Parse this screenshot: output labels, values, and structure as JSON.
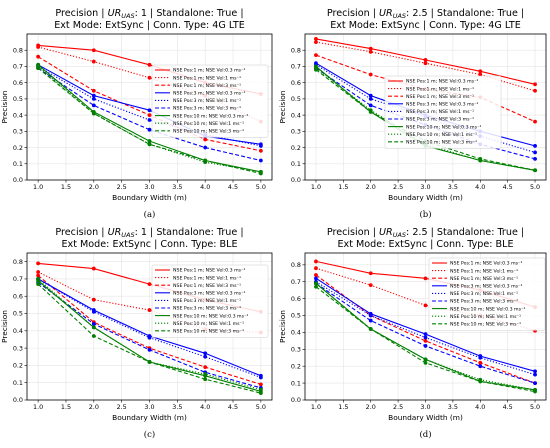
{
  "figure": {
    "line_styles": {
      "0.3": "solid",
      "1": "dotted",
      "3": "dashed"
    },
    "colors": {
      "1": "#ff0000",
      "3": "#0000ff",
      "10": "#008000"
    }
  },
  "chart_data": [
    {
      "type": "line",
      "title_line1_a": "Precision | ",
      "title_ur_main": "UR",
      "title_ur_sub": "UAS",
      "title_line1_b": ": 1 | Standalone: True |",
      "title_line2": "Ext Mode: ExtSync | Conn. Type: 4G LTE",
      "xlabel": "Boundary  Width (m)",
      "ylabel": "Precision",
      "panel_label": "(a)",
      "xlim": [
        0.8,
        5.2
      ],
      "ylim": [
        0.0,
        0.9
      ],
      "xticks": [
        "1.0",
        "1.5",
        "2.0",
        "2.5",
        "3.0",
        "3.5",
        "4.0",
        "4.5",
        "5.0"
      ],
      "yticks": [
        "0.0",
        "0.1",
        "0.2",
        "0.3",
        "0.4",
        "0.5",
        "0.6",
        "0.7",
        "0.8"
      ],
      "grid": true,
      "legend_position": "center-right",
      "x": [
        1,
        2,
        3,
        4,
        5
      ],
      "series": [
        {
          "name": "NSE Pos:1 m; NSE Vel:0.3 ms⁻¹",
          "pos": "1",
          "vel": "0.3",
          "values": [
            0.83,
            0.8,
            0.71,
            0.6,
            0.53
          ]
        },
        {
          "name": "NSE Pos:1 m; NSE Vel:1 ms⁻¹",
          "pos": "1",
          "vel": "1",
          "values": [
            0.82,
            0.73,
            0.63,
            0.52,
            0.36
          ]
        },
        {
          "name": "NSE Pos:1 m; NSE Vel:3 ms⁻¹",
          "pos": "1",
          "vel": "3",
          "values": [
            0.76,
            0.55,
            0.4,
            0.25,
            0.18
          ]
        },
        {
          "name": "NSE Pos:3 m; NSE Vel:0.3 ms⁻¹",
          "pos": "3",
          "vel": "0.3",
          "values": [
            0.71,
            0.52,
            0.43,
            0.27,
            0.22
          ]
        },
        {
          "name": "NSE Pos:3 m; NSE Vel:1 ms⁻¹",
          "pos": "3",
          "vel": "1",
          "values": [
            0.7,
            0.5,
            0.37,
            0.28,
            0.21
          ]
        },
        {
          "name": "NSE Pos:3 m; NSE Vel:3 ms⁻¹",
          "pos": "3",
          "vel": "3",
          "values": [
            0.69,
            0.46,
            0.31,
            0.2,
            0.12
          ]
        },
        {
          "name": "NSE Pos:10 m; NSE Vel:0.3 ms⁻¹",
          "pos": "10",
          "vel": "0.3",
          "values": [
            0.71,
            0.42,
            0.24,
            0.12,
            0.05
          ]
        },
        {
          "name": "NSE Pos:10 m; NSE Vel:1 ms⁻¹",
          "pos": "10",
          "vel": "1",
          "values": [
            0.7,
            0.41,
            0.22,
            0.11,
            0.05
          ]
        },
        {
          "name": "NSE Pos:10 m; NSE Vel:3 ms⁻¹",
          "pos": "10",
          "vel": "3",
          "values": [
            0.69,
            0.41,
            0.22,
            0.12,
            0.04
          ]
        }
      ]
    },
    {
      "type": "line",
      "title_line1_a": "Precision | ",
      "title_ur_main": "UR",
      "title_ur_sub": "UAS",
      "title_line1_b": ": 2.5 | Standalone: True |",
      "title_line2": "Ext Mode: ExtSync | Conn. Type: 4G LTE",
      "xlabel": "Boundary  Width (m)",
      "ylabel": "Precision",
      "panel_label": "(b)",
      "xlim": [
        0.8,
        5.2
      ],
      "ylim": [
        0.0,
        0.9
      ],
      "xticks": [
        "1.0",
        "1.5",
        "2.0",
        "2.5",
        "3.0",
        "3.5",
        "4.0",
        "4.5",
        "5.0"
      ],
      "yticks": [
        "0.0",
        "0.1",
        "0.2",
        "0.3",
        "0.4",
        "0.5",
        "0.6",
        "0.7",
        "0.8"
      ],
      "grid": true,
      "legend_position": "center",
      "x": [
        1,
        2,
        3,
        4,
        5
      ],
      "series": [
        {
          "name": "NSE Pos:1 m; NSE Vel:0.3 ms⁻¹",
          "pos": "1",
          "vel": "0.3",
          "values": [
            0.87,
            0.81,
            0.74,
            0.67,
            0.59
          ]
        },
        {
          "name": "NSE Pos:1 m; NSE Vel:1 ms⁻¹",
          "pos": "1",
          "vel": "1",
          "values": [
            0.85,
            0.79,
            0.72,
            0.65,
            0.55
          ]
        },
        {
          "name": "NSE Pos:1 m; NSE Vel:3 ms⁻¹",
          "pos": "1",
          "vel": "3",
          "values": [
            0.77,
            0.65,
            0.56,
            0.51,
            0.36
          ]
        },
        {
          "name": "NSE Pos:3 m; NSE Vel:0.3 ms⁻¹",
          "pos": "3",
          "vel": "0.3",
          "values": [
            0.72,
            0.52,
            0.4,
            0.3,
            0.21
          ]
        },
        {
          "name": "NSE Pos:3 m; NSE Vel:1 ms⁻¹",
          "pos": "3",
          "vel": "1",
          "values": [
            0.71,
            0.5,
            0.39,
            0.27,
            0.17
          ]
        },
        {
          "name": "NSE Pos:3 m; NSE Vel:3 ms⁻¹",
          "pos": "3",
          "vel": "3",
          "values": [
            0.69,
            0.46,
            0.34,
            0.22,
            0.13
          ]
        },
        {
          "name": "NSE Pos:10 m; NSE Vel:0.3 ms⁻¹",
          "pos": "10",
          "vel": "0.3",
          "values": [
            0.7,
            0.42,
            0.21,
            0.12,
            0.06
          ]
        },
        {
          "name": "NSE Pos:10 m; NSE Vel:1 ms⁻¹",
          "pos": "10",
          "vel": "1",
          "values": [
            0.69,
            0.43,
            0.22,
            0.12,
            0.06
          ]
        },
        {
          "name": "NSE Pos:10 m; NSE Vel:3 ms⁻¹",
          "pos": "10",
          "vel": "3",
          "values": [
            0.68,
            0.42,
            0.24,
            0.13,
            0.06
          ]
        }
      ]
    },
    {
      "type": "line",
      "title_line1_a": "Precision | ",
      "title_ur_main": "UR",
      "title_ur_sub": "UAS",
      "title_line1_b": ": 1 | Standalone: True |",
      "title_line2": "Ext Mode: ExtSync | Conn. Type: BLE",
      "xlabel": "Boundary  Width (m)",
      "ylabel": "Precision",
      "panel_label": "(c)",
      "xlim": [
        0.8,
        5.2
      ],
      "ylim": [
        0.0,
        0.85
      ],
      "xticks": [
        "1.0",
        "1.5",
        "2.0",
        "2.5",
        "3.0",
        "3.5",
        "4.0",
        "4.5",
        "5.0"
      ],
      "yticks": [
        "0.0",
        "0.1",
        "0.2",
        "0.3",
        "0.4",
        "0.5",
        "0.6",
        "0.7",
        "0.8"
      ],
      "grid": true,
      "legend_position": "upper-right",
      "x": [
        1,
        2,
        3,
        4,
        5
      ],
      "series": [
        {
          "name": "NSE Pos:1 m; NSE Vel:0.3 ms⁻¹",
          "pos": "1",
          "vel": "0.3",
          "values": [
            0.79,
            0.76,
            0.67,
            0.58,
            0.51
          ]
        },
        {
          "name": "NSE Pos:1 m; NSE Vel:1 ms⁻¹",
          "pos": "1",
          "vel": "1",
          "values": [
            0.74,
            0.58,
            0.52,
            0.41,
            0.39
          ]
        },
        {
          "name": "NSE Pos:1 m; NSE Vel:3 ms⁻¹",
          "pos": "1",
          "vel": "3",
          "values": [
            0.72,
            0.45,
            0.3,
            0.19,
            0.09
          ]
        },
        {
          "name": "NSE Pos:3 m; NSE Vel:0.3 ms⁻¹",
          "pos": "3",
          "vel": "0.3",
          "values": [
            0.7,
            0.52,
            0.37,
            0.27,
            0.14
          ]
        },
        {
          "name": "NSE Pos:3 m; NSE Vel:1 ms⁻¹",
          "pos": "3",
          "vel": "1",
          "values": [
            0.7,
            0.51,
            0.36,
            0.25,
            0.13
          ]
        },
        {
          "name": "NSE Pos:3 m; NSE Vel:3 ms⁻¹",
          "pos": "3",
          "vel": "3",
          "values": [
            0.68,
            0.44,
            0.29,
            0.16,
            0.07
          ]
        },
        {
          "name": "NSE Pos:10 m; NSE Vel:0.3 ms⁻¹",
          "pos": "10",
          "vel": "0.3",
          "values": [
            0.69,
            0.42,
            0.22,
            0.14,
            0.05
          ]
        },
        {
          "name": "NSE Pos:10 m; NSE Vel:1 ms⁻¹",
          "pos": "10",
          "vel": "1",
          "values": [
            0.7,
            0.42,
            0.22,
            0.15,
            0.06
          ]
        },
        {
          "name": "NSE Pos:10 m; NSE Vel:3 ms⁻¹",
          "pos": "10",
          "vel": "3",
          "values": [
            0.67,
            0.37,
            0.22,
            0.12,
            0.04
          ]
        }
      ]
    },
    {
      "type": "line",
      "title_line1_a": "Precision | ",
      "title_ur_main": "UR",
      "title_ur_sub": "UAS",
      "title_line1_b": ": 2.5 | Standalone: True |",
      "title_line2": "Ext Mode: ExtSync | Conn. Type: BLE",
      "xlabel": "Boundary  Width (m)",
      "ylabel": "Precision",
      "panel_label": "(d)",
      "xlim": [
        0.8,
        5.2
      ],
      "ylim": [
        0.0,
        0.87
      ],
      "xticks": [
        "1.0",
        "1.5",
        "2.0",
        "2.5",
        "3.0",
        "3.5",
        "4.0",
        "4.5",
        "5.0"
      ],
      "yticks": [
        "0.0",
        "0.1",
        "0.2",
        "0.3",
        "0.4",
        "0.5",
        "0.6",
        "0.7",
        "0.8"
      ],
      "grid": true,
      "legend_position": "upper-right",
      "x": [
        1,
        2,
        3,
        4,
        5
      ],
      "series": [
        {
          "name": "NSE Pos:1 m; NSE Vel:0.3 ms⁻¹",
          "pos": "1",
          "vel": "0.3",
          "values": [
            0.82,
            0.75,
            0.72,
            0.65,
            0.55
          ]
        },
        {
          "name": "NSE Pos:1 m; NSE Vel:1 ms⁻¹",
          "pos": "1",
          "vel": "1",
          "values": [
            0.78,
            0.68,
            0.56,
            0.5,
            0.41
          ]
        },
        {
          "name": "NSE Pos:1 m; NSE Vel:3 ms⁻¹",
          "pos": "1",
          "vel": "3",
          "values": [
            0.74,
            0.5,
            0.35,
            0.22,
            0.1
          ]
        },
        {
          "name": "NSE Pos:3 m; NSE Vel:0.3 ms⁻¹",
          "pos": "3",
          "vel": "0.3",
          "values": [
            0.72,
            0.51,
            0.39,
            0.26,
            0.17
          ]
        },
        {
          "name": "NSE Pos:3 m; NSE Vel:1 ms⁻¹",
          "pos": "3",
          "vel": "1",
          "values": [
            0.7,
            0.5,
            0.37,
            0.25,
            0.15
          ]
        },
        {
          "name": "NSE Pos:3 m; NSE Vel:3 ms⁻¹",
          "pos": "3",
          "vel": "3",
          "values": [
            0.69,
            0.47,
            0.32,
            0.2,
            0.1
          ]
        },
        {
          "name": "NSE Pos:10 m; NSE Vel:0.3 ms⁻¹",
          "pos": "10",
          "vel": "0.3",
          "values": [
            0.69,
            0.42,
            0.24,
            0.11,
            0.06
          ]
        },
        {
          "name": "NSE Pos:10 m; NSE Vel:1 ms⁻¹",
          "pos": "10",
          "vel": "1",
          "values": [
            0.69,
            0.42,
            0.24,
            0.12,
            0.06
          ]
        },
        {
          "name": "NSE Pos:10 m; NSE Vel:3 ms⁻¹",
          "pos": "10",
          "vel": "3",
          "values": [
            0.67,
            0.42,
            0.22,
            0.11,
            0.05
          ]
        }
      ]
    }
  ]
}
